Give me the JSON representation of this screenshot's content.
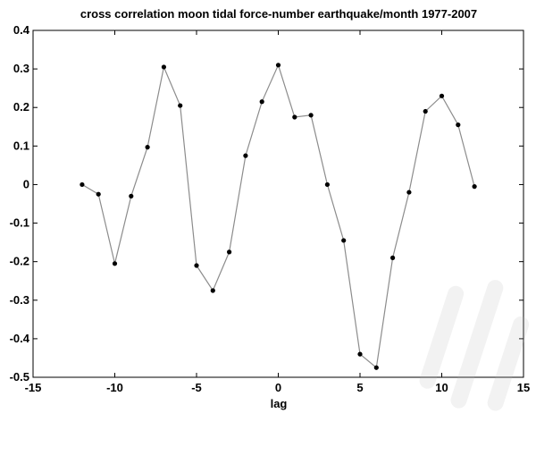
{
  "chart_data": {
    "type": "line",
    "title": "cross correlation moon tidal force-number earthquake/month 1977-2007",
    "xlabel": "lag",
    "ylabel": "",
    "xlim": [
      -15,
      15
    ],
    "ylim": [
      -0.5,
      0.4
    ],
    "xticks": [
      "-15",
      "-10",
      "-5",
      "0",
      "5",
      "10",
      "15"
    ],
    "yticks": [
      "0.4",
      "0.3",
      "0.2",
      "0.1",
      "0",
      "-0.1",
      "-0.2",
      "-0.3",
      "-0.4",
      "-0.5"
    ],
    "grid": false,
    "colors": {
      "line": "#8c8c8c",
      "marker": "#000000",
      "axes": "#000000"
    },
    "series": [
      {
        "x": [
          -12,
          -11,
          -10,
          -9,
          -8,
          -7,
          -6,
          -5,
          -4,
          -3,
          -2,
          -1,
          0,
          1,
          2,
          3,
          4,
          5,
          6,
          7,
          8,
          9,
          10,
          11,
          12
        ],
        "values": [
          0.0,
          -0.025,
          -0.205,
          -0.03,
          0.097,
          0.305,
          0.205,
          -0.21,
          -0.275,
          -0.175,
          0.075,
          0.215,
          0.31,
          0.175,
          0.18,
          0.0,
          -0.145,
          -0.44,
          -0.475,
          -0.19,
          -0.02,
          0.19,
          0.23,
          0.155,
          -0.005
        ]
      }
    ]
  }
}
